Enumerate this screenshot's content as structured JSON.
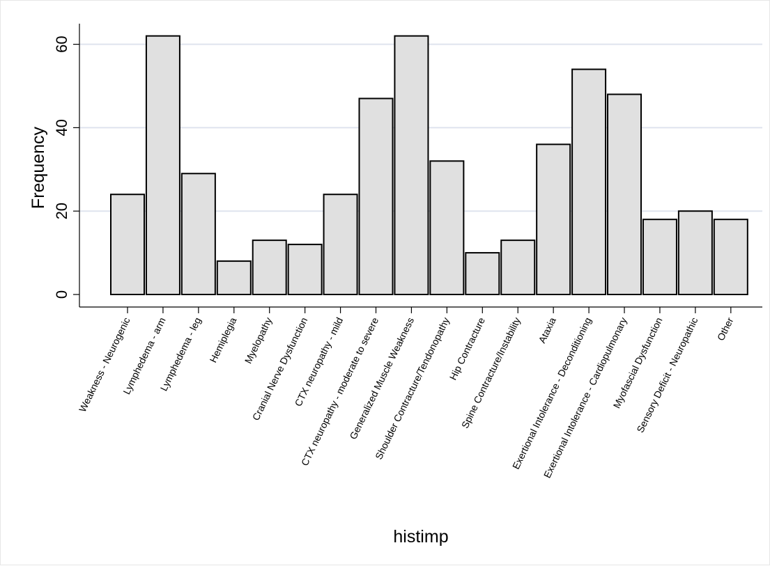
{
  "chart_data": {
    "type": "bar",
    "title": "",
    "xlabel": "histimp",
    "ylabel": "Frequency",
    "ylim": [
      0,
      65
    ],
    "yticks": [
      0,
      20,
      40,
      60
    ],
    "grid": true,
    "categories": [
      "Weakness - Neurogenic",
      "Lymphedema - arm",
      "Lymphedema - leg",
      "Hemiplegia",
      "Myelopathy",
      "Cranial Nerve Dysfunction",
      "CTX neuropathy - mild",
      "CTX neuropathy - moderate to severe",
      "Generalized Muscle Weakness",
      "Shoulder Contracture/Tendonopathy",
      "Hip Contracture",
      "Spine Contracture/Instability",
      "Ataxia",
      "Exertional Intolerance - Deconditioning",
      "Exertional Intolerance - Cardiopulmonary",
      "Myofascial Dysfunction",
      "Sensory Deficit - Neuropathic",
      "Other"
    ],
    "values": [
      24,
      62,
      29,
      8,
      13,
      12,
      24,
      47,
      62,
      32,
      10,
      13,
      36,
      54,
      48,
      18,
      20,
      18
    ],
    "colors": {
      "bar_fill": "#e0e0e0",
      "bar_stroke": "#000000",
      "grid": "#dfe3ee",
      "axis": "#000000"
    }
  }
}
